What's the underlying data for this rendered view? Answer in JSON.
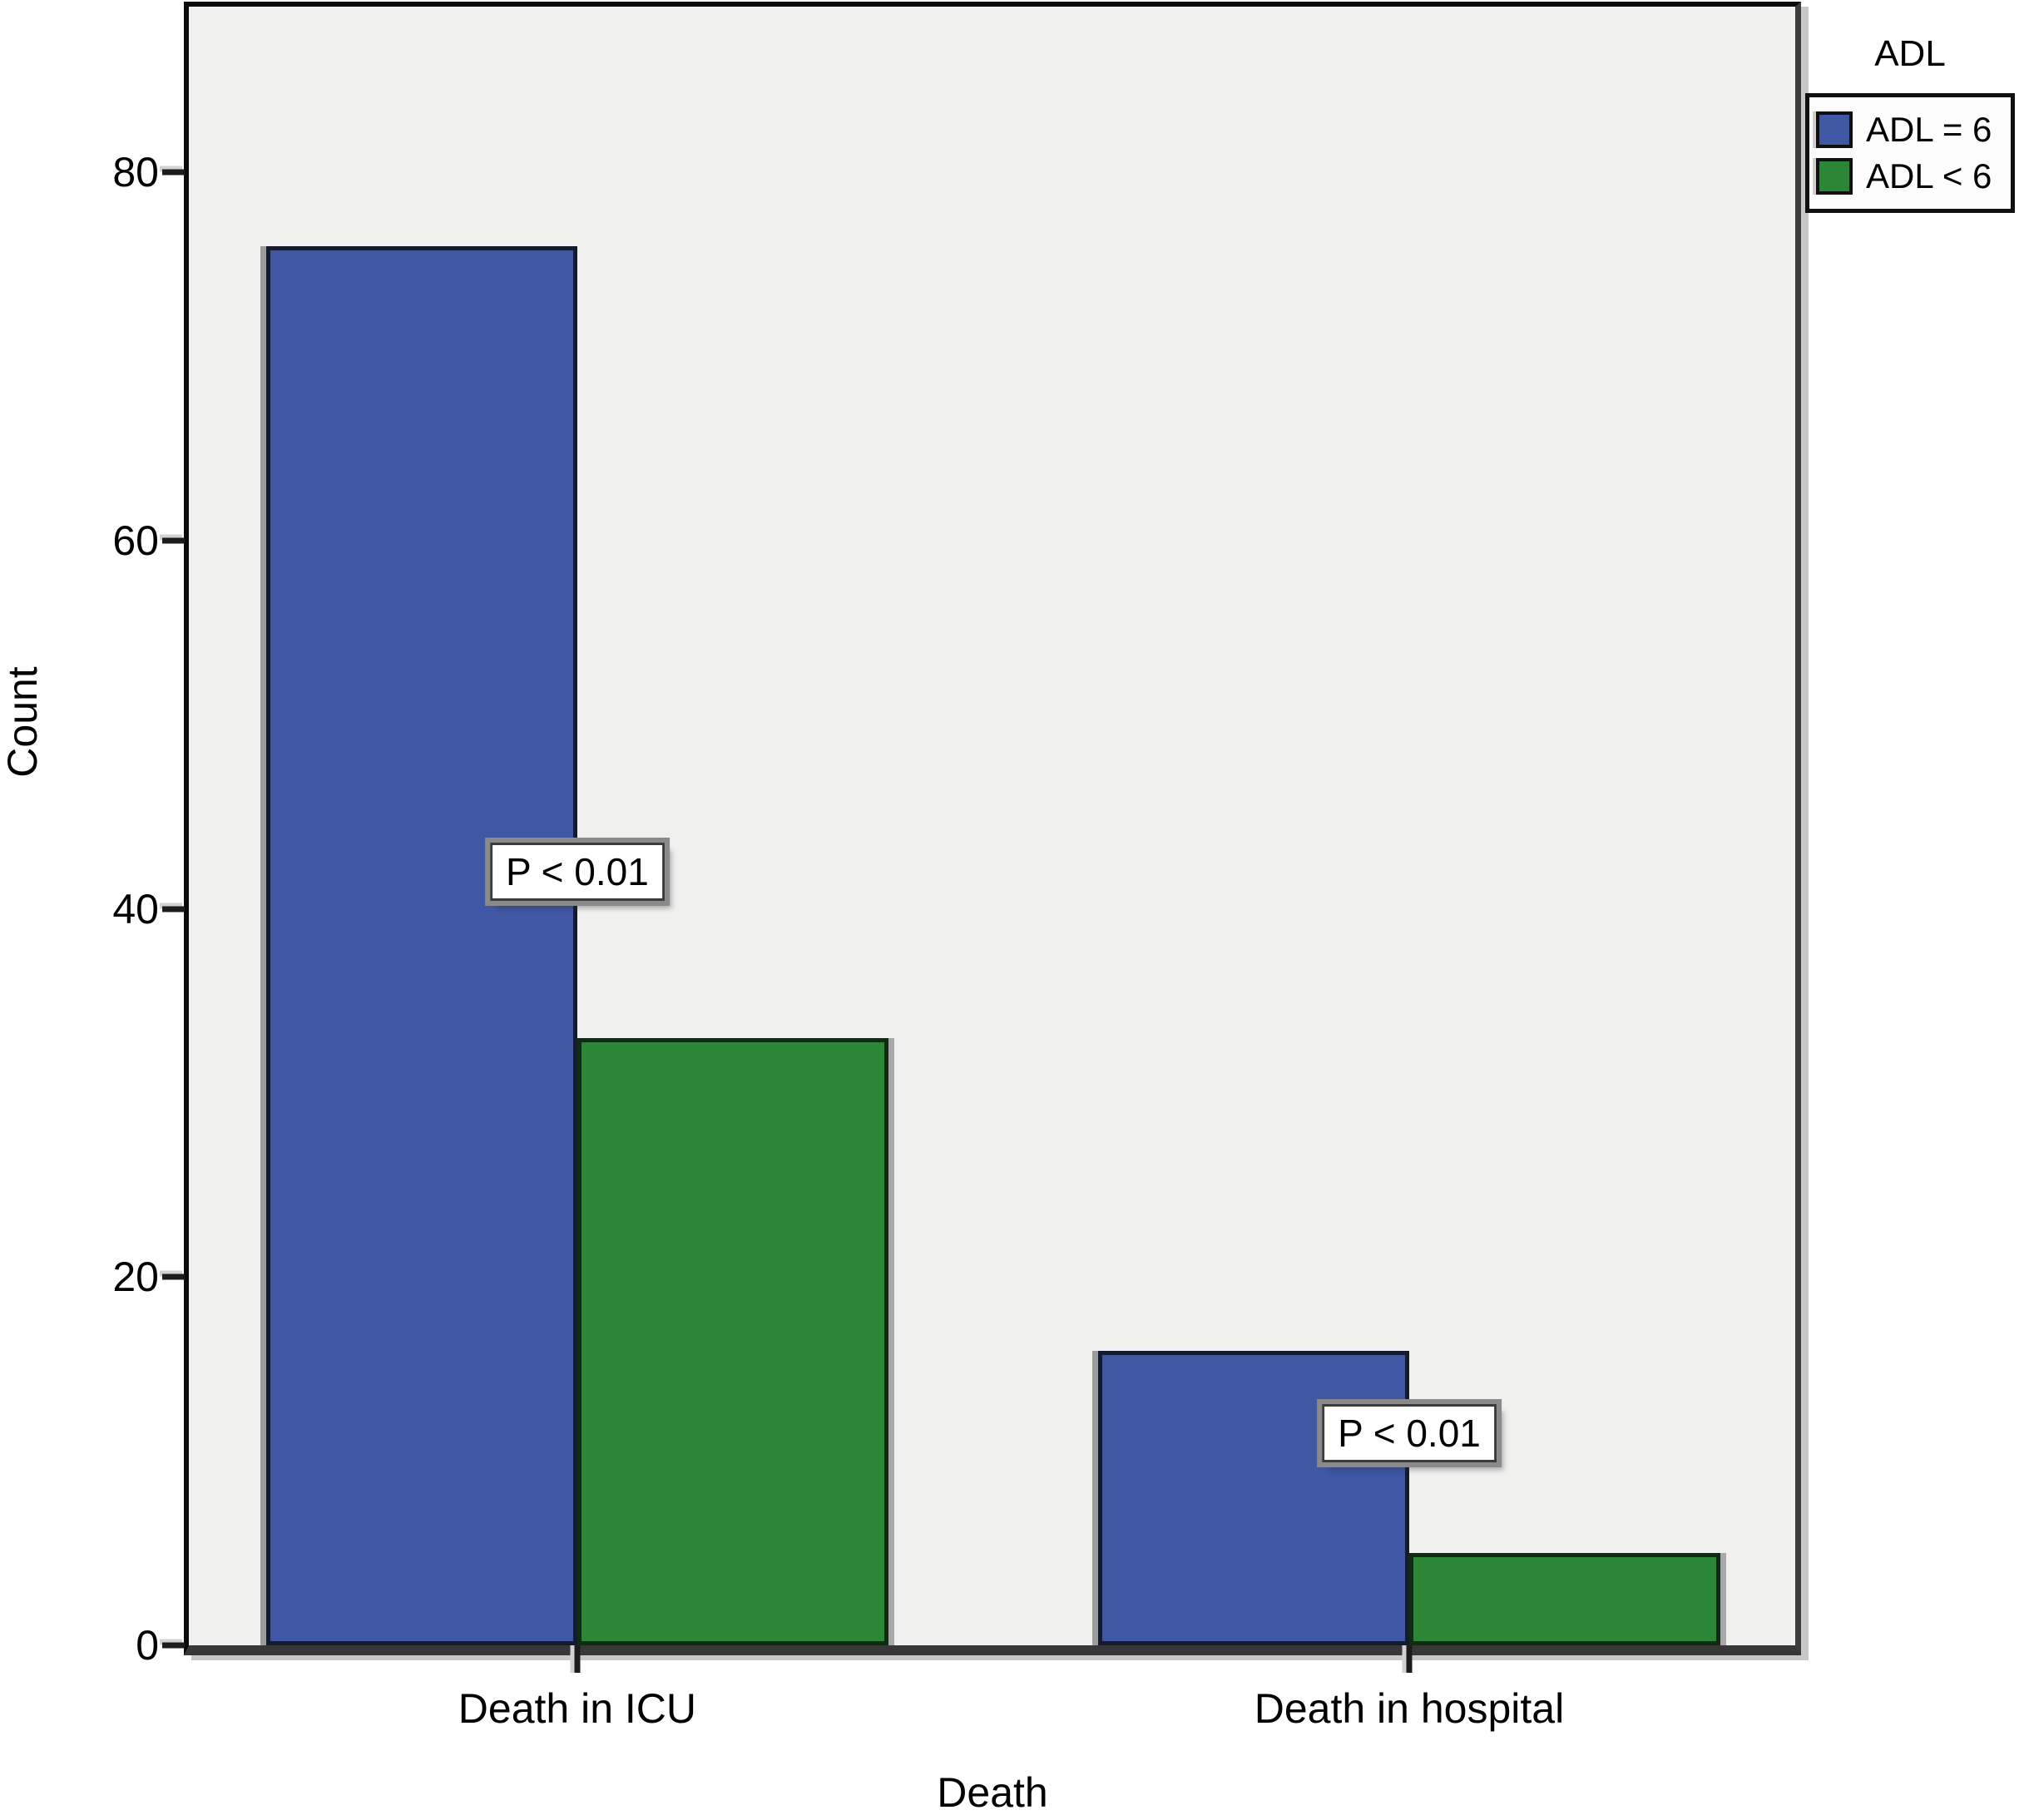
{
  "chart_data": {
    "type": "bar",
    "title": "",
    "xlabel": "Death",
    "ylabel": "Count",
    "categories": [
      "Death in ICU",
      "Death in hospital"
    ],
    "series": [
      {
        "name": "ADL = 6",
        "color": "#3F57A5",
        "values": [
          76,
          16
        ]
      },
      {
        "name": "ADL < 6",
        "color": "#2B8636",
        "values": [
          33,
          5
        ]
      }
    ],
    "annotations": [
      {
        "text": "P < 0.01",
        "category": "Death in ICU",
        "y_value": 42
      },
      {
        "text": "P < 0.01",
        "category": "Death in hospital",
        "y_value": 11.5
      }
    ],
    "yticks": [
      0,
      20,
      40,
      60,
      80
    ],
    "ylim": [
      0,
      89
    ],
    "grid": false,
    "legend": {
      "title": "ADL",
      "position": "top-right-outside"
    },
    "plot_bg": "#F0F0EE",
    "group_centers_frac": [
      0.2418,
      0.7597
    ],
    "bar_width_frac": 0.1937
  }
}
